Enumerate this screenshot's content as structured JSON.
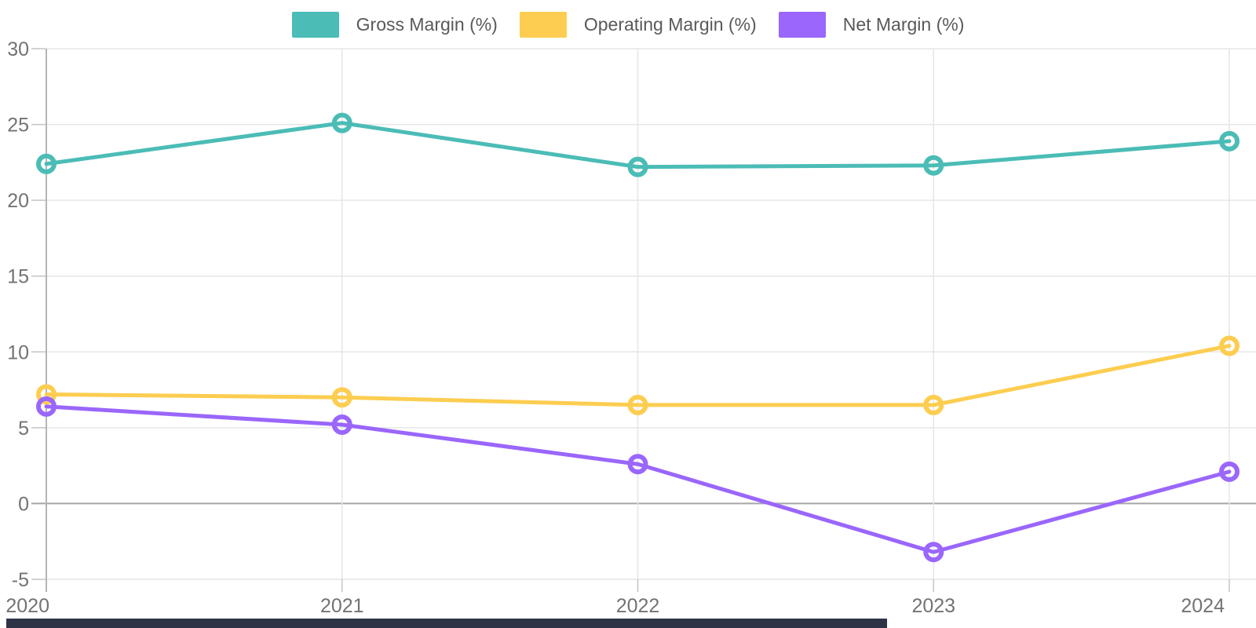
{
  "chart_data": {
    "type": "line",
    "categories": [
      "2020",
      "2021",
      "2022",
      "2023",
      "2024"
    ],
    "series": [
      {
        "name": "Gross Margin (%)",
        "color": "#4bbcb6",
        "values": [
          22.4,
          25.1,
          22.2,
          22.3,
          23.9
        ]
      },
      {
        "name": "Operating Margin (%)",
        "color": "#fccd50",
        "values": [
          7.2,
          7.0,
          6.5,
          6.5,
          10.4
        ]
      },
      {
        "name": "Net Margin (%)",
        "color": "#9a66fb",
        "values": [
          6.4,
          5.2,
          2.6,
          -3.2,
          2.1
        ]
      }
    ],
    "ylim": [
      -5,
      30
    ],
    "yticks": [
      30,
      25,
      20,
      15,
      10,
      5,
      0,
      -5
    ],
    "grid": true,
    "legend_position": "top"
  },
  "style": {
    "background": "#ffffff",
    "grid_color": "#e6e6e6",
    "zero_line_color": "#a6a6a6",
    "axis_line_color": "#b5b5b5",
    "tick_mark_color": "#c4c4c4",
    "tick_label_color": "#737373",
    "legend_text_color": "#595959",
    "bottom_bar_color": "#2e3446"
  }
}
